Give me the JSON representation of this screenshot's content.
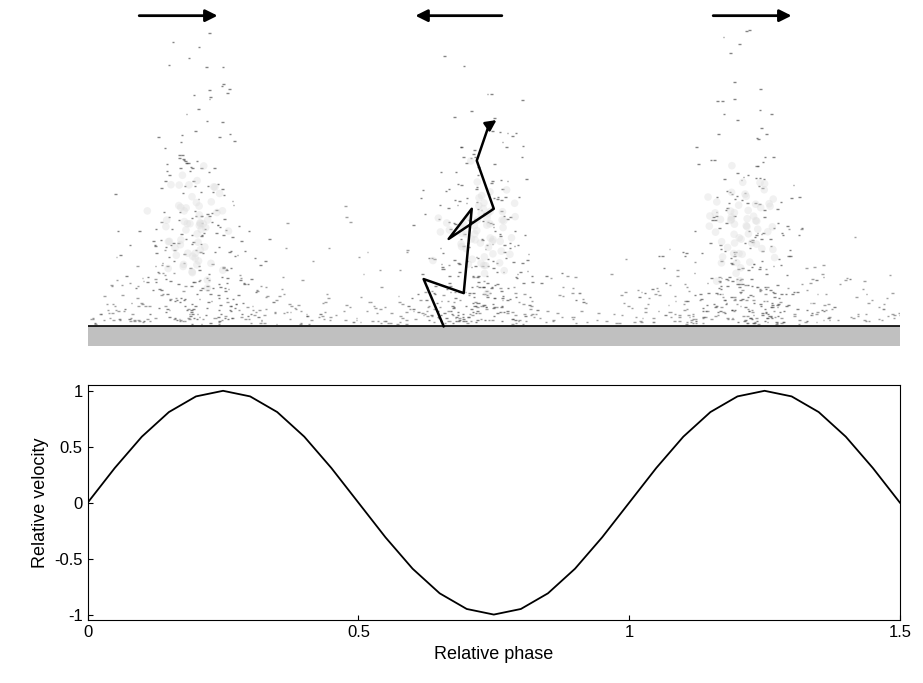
{
  "chart_data": {
    "type": "line",
    "x_label": "Relative phase",
    "y_label": "Relative velocity",
    "x": [
      0,
      0.05,
      0.1,
      0.15,
      0.2,
      0.25,
      0.3,
      0.35,
      0.4,
      0.45,
      0.5,
      0.55,
      0.6,
      0.65,
      0.7,
      0.75,
      0.8,
      0.85,
      0.9,
      0.95,
      1,
      1.05,
      1.1,
      1.15,
      1.2,
      1.25,
      1.3,
      1.35,
      1.4,
      1.45,
      1.5
    ],
    "values": [
      0,
      0.31,
      0.59,
      0.81,
      0.95,
      1,
      0.95,
      0.81,
      0.59,
      0.31,
      0,
      -0.31,
      -0.59,
      -0.81,
      -0.95,
      -1,
      -0.95,
      -0.81,
      -0.59,
      -0.31,
      0,
      0.31,
      0.59,
      0.81,
      0.95,
      1,
      0.95,
      0.81,
      0.59,
      0.31,
      0
    ],
    "color": "#000000",
    "xlim": [
      0,
      1.5
    ],
    "xticks": [
      0,
      0.5,
      1,
      1.5
    ],
    "ylim": [
      -1.05,
      1.05
    ],
    "yticks": [
      -1,
      -0.5,
      0,
      0.5,
      1
    ],
    "grid": false
  }
}
